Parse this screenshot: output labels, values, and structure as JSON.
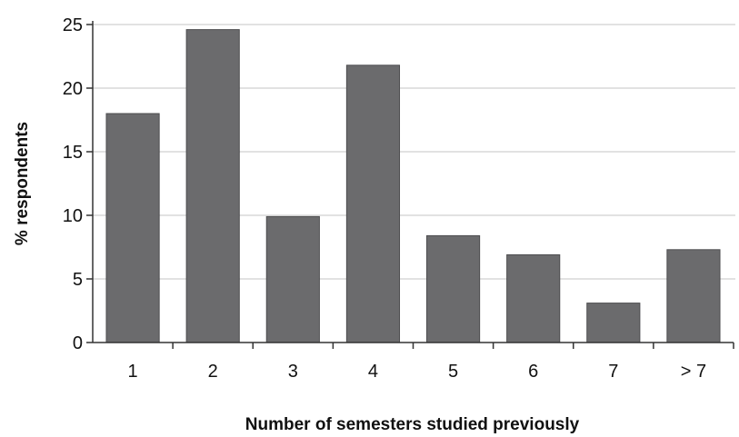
{
  "chart_data": {
    "type": "bar",
    "categories": [
      "1",
      "2",
      "3",
      "4",
      "5",
      "6",
      "7",
      "> 7"
    ],
    "values": [
      18.0,
      24.6,
      9.9,
      21.8,
      8.4,
      6.9,
      3.1,
      7.3
    ],
    "title": "",
    "xlabel": "Number of semesters studied previously",
    "ylabel": "% respondents",
    "ylim": [
      0,
      25
    ],
    "yticks": [
      0,
      5,
      10,
      15,
      20,
      25
    ],
    "grid": true,
    "legend": "none",
    "colors": {
      "bar": "#6b6b6d",
      "bar_edge": "#4d4d4f",
      "grid": "#d9d9d9",
      "axis": "#333333"
    }
  }
}
